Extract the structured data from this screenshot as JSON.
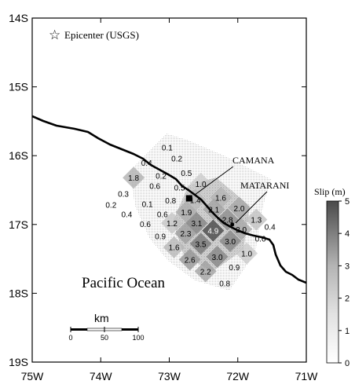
{
  "map": {
    "lon_range": [
      -75,
      -71
    ],
    "lat_range": [
      -19,
      -14
    ],
    "x_ticks": [
      "75W",
      "74W",
      "73W",
      "72W",
      "71W"
    ],
    "y_ticks": [
      "14S",
      "15S",
      "16S",
      "17S",
      "18S",
      "19S"
    ],
    "legend_label": "Epicenter (USGS)",
    "ocean_label": "Pacific Ocean",
    "cities": [
      {
        "name": "CAMANA",
        "lon": -72.71,
        "lat": -16.62
      },
      {
        "name": "MATARANI",
        "lon": -72.08,
        "lat": -17.0
      }
    ],
    "epicenter": {
      "lon": -72.71,
      "lat": -16.62
    },
    "scale_bar": {
      "title": "km",
      "ticks": [
        "0",
        "50",
        "100"
      ]
    },
    "colorbar": {
      "title": "Slip (m)",
      "ticks": [
        "0",
        "1",
        "2",
        "3",
        "4",
        "5"
      ],
      "max": 5
    },
    "slip_values": [
      {
        "text": "0.1",
        "lon": -73.03,
        "lat": -15.88
      },
      {
        "text": "0.4",
        "lon": -73.33,
        "lat": -16.1
      },
      {
        "text": "0.2",
        "lon": -72.89,
        "lat": -16.04
      },
      {
        "text": "1.8",
        "lon": -73.52,
        "lat": -16.32,
        "slip": 1.8
      },
      {
        "text": "0.2",
        "lon": -73.12,
        "lat": -16.29
      },
      {
        "text": "0.5",
        "lon": -72.75,
        "lat": -16.25
      },
      {
        "text": "0.6",
        "lon": -73.21,
        "lat": -16.44
      },
      {
        "text": "0.5",
        "lon": -72.85,
        "lat": -16.46
      },
      {
        "text": "1.0",
        "lon": -72.54,
        "lat": -16.41,
        "slip": 1.0
      },
      {
        "text": "0.3",
        "lon": -73.67,
        "lat": -16.55
      },
      {
        "text": "0.1",
        "lon": -73.32,
        "lat": -16.7
      },
      {
        "text": "0.8",
        "lon": -72.98,
        "lat": -16.65
      },
      {
        "text": "1.4",
        "lon": -72.62,
        "lat": -16.64,
        "slip": 1.4
      },
      {
        "text": "1.6",
        "lon": -72.25,
        "lat": -16.61,
        "slip": 1.6
      },
      {
        "text": "0.2",
        "lon": -73.85,
        "lat": -16.71
      },
      {
        "text": "0.4",
        "lon": -73.62,
        "lat": -16.85
      },
      {
        "text": "0.6",
        "lon": -73.1,
        "lat": -16.85
      },
      {
        "text": "1.9",
        "lon": -72.75,
        "lat": -16.82,
        "slip": 1.9
      },
      {
        "text": "2.1",
        "lon": -72.35,
        "lat": -16.78,
        "slip": 2.1
      },
      {
        "text": "2.0",
        "lon": -71.98,
        "lat": -16.76,
        "slip": 2.0
      },
      {
        "text": "0.6",
        "lon": -73.35,
        "lat": -16.99
      },
      {
        "text": "1.2",
        "lon": -72.96,
        "lat": -16.98,
        "slip": 1.2
      },
      {
        "text": "3.1",
        "lon": -72.6,
        "lat": -16.98,
        "slip": 3.1
      },
      {
        "text": "2.8",
        "lon": -72.15,
        "lat": -16.93,
        "slip": 2.8
      },
      {
        "text": "1.3",
        "lon": -71.73,
        "lat": -16.93,
        "slip": 1.3
      },
      {
        "text": "0.9",
        "lon": -73.13,
        "lat": -17.17
      },
      {
        "text": "2.3",
        "lon": -72.76,
        "lat": -17.13,
        "slip": 2.3
      },
      {
        "text": "4.9",
        "lon": -72.36,
        "lat": -17.09,
        "slip": 4.9
      },
      {
        "text": "2.0",
        "lon": -71.95,
        "lat": -17.07,
        "slip": 2.0
      },
      {
        "text": "0.4",
        "lon": -71.53,
        "lat": -17.03
      },
      {
        "text": "1.6",
        "lon": -72.93,
        "lat": -17.33,
        "slip": 1.6
      },
      {
        "text": "3.5",
        "lon": -72.54,
        "lat": -17.28,
        "slip": 3.5
      },
      {
        "text": "3.0",
        "lon": -72.11,
        "lat": -17.24,
        "slip": 3.0
      },
      {
        "text": "0.6",
        "lon": -71.67,
        "lat": -17.2
      },
      {
        "text": "2.6",
        "lon": -72.7,
        "lat": -17.51,
        "slip": 2.6
      },
      {
        "text": "3.0",
        "lon": -72.3,
        "lat": -17.47,
        "slip": 3.0
      },
      {
        "text": "1.0",
        "lon": -71.87,
        "lat": -17.42,
        "slip": 1.0
      },
      {
        "text": "2.2",
        "lon": -72.47,
        "lat": -17.68,
        "slip": 2.2
      },
      {
        "text": "0.9",
        "lon": -72.05,
        "lat": -17.62
      },
      {
        "text": "0.8",
        "lon": -72.19,
        "lat": -17.85
      }
    ]
  }
}
